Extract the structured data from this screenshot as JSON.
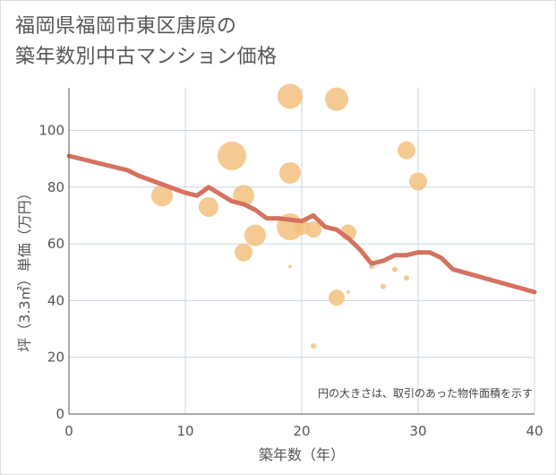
{
  "title_lines": [
    "福岡県福岡市東区唐原の",
    "築年数別中古マンション価格"
  ],
  "chart_data": {
    "type": "scatter",
    "title": "福岡県福岡市東区唐原の築年数別中古マンション価格",
    "xlabel": "築年数（年）",
    "ylabel": "坪（3.3㎡）単価（万円）",
    "xlim": [
      0,
      40
    ],
    "ylim": [
      0,
      115
    ],
    "xticks": [
      0,
      10,
      20,
      30,
      40
    ],
    "yticks": [
      0,
      20,
      40,
      60,
      80,
      100
    ],
    "grid": true,
    "note": "円の大きさは、取引のあった物件面積を示す",
    "colors": {
      "bubble": "#f3c17f",
      "trend": "#d4725f",
      "grid": "#c8d6e4"
    },
    "bubbles": [
      {
        "x": 8,
        "y": 77,
        "size": 12
      },
      {
        "x": 12,
        "y": 73,
        "size": 11
      },
      {
        "x": 14,
        "y": 91,
        "size": 16
      },
      {
        "x": 15,
        "y": 77,
        "size": 12
      },
      {
        "x": 15,
        "y": 57,
        "size": 10
      },
      {
        "x": 16,
        "y": 63,
        "size": 12
      },
      {
        "x": 19,
        "y": 112,
        "size": 14
      },
      {
        "x": 19,
        "y": 85,
        "size": 12
      },
      {
        "x": 19,
        "y": 66,
        "size": 15
      },
      {
        "x": 19,
        "y": 52,
        "size": 2
      },
      {
        "x": 20,
        "y": 66,
        "size": 9
      },
      {
        "x": 21,
        "y": 65,
        "size": 9
      },
      {
        "x": 21,
        "y": 24,
        "size": 3
      },
      {
        "x": 23,
        "y": 111,
        "size": 13
      },
      {
        "x": 23,
        "y": 41,
        "size": 9
      },
      {
        "x": 24,
        "y": 64,
        "size": 9
      },
      {
        "x": 24,
        "y": 43,
        "size": 2
      },
      {
        "x": 26,
        "y": 52,
        "size": 3
      },
      {
        "x": 27,
        "y": 45,
        "size": 3
      },
      {
        "x": 28,
        "y": 51,
        "size": 3
      },
      {
        "x": 29,
        "y": 93,
        "size": 10
      },
      {
        "x": 29,
        "y": 48,
        "size": 3
      },
      {
        "x": 30,
        "y": 82,
        "size": 10
      }
    ],
    "trend": [
      {
        "x": 0,
        "y": 91
      },
      {
        "x": 3,
        "y": 88
      },
      {
        "x": 5,
        "y": 86
      },
      {
        "x": 6,
        "y": 84
      },
      {
        "x": 8,
        "y": 81
      },
      {
        "x": 10,
        "y": 78
      },
      {
        "x": 11,
        "y": 77
      },
      {
        "x": 12,
        "y": 80
      },
      {
        "x": 14,
        "y": 75
      },
      {
        "x": 15,
        "y": 74
      },
      {
        "x": 16,
        "y": 72
      },
      {
        "x": 17,
        "y": 69
      },
      {
        "x": 18,
        "y": 69
      },
      {
        "x": 20,
        "y": 68
      },
      {
        "x": 21,
        "y": 70
      },
      {
        "x": 22,
        "y": 66
      },
      {
        "x": 23,
        "y": 65
      },
      {
        "x": 24,
        "y": 62
      },
      {
        "x": 25,
        "y": 58
      },
      {
        "x": 26,
        "y": 53
      },
      {
        "x": 27,
        "y": 54
      },
      {
        "x": 28,
        "y": 56
      },
      {
        "x": 29,
        "y": 56
      },
      {
        "x": 30,
        "y": 57
      },
      {
        "x": 31,
        "y": 57
      },
      {
        "x": 32,
        "y": 55
      },
      {
        "x": 33,
        "y": 51
      },
      {
        "x": 40,
        "y": 43
      }
    ]
  }
}
